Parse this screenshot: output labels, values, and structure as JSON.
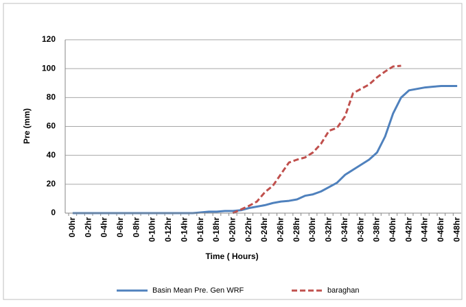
{
  "chart_data": {
    "type": "line",
    "xlabel": "Time ( Hours)",
    "ylabel": "Pre (mm)",
    "categories": [
      "0-0hr",
      null,
      "0-2hr",
      null,
      "0-4hr",
      null,
      "0-6hr",
      null,
      "0-8hr",
      null,
      "0-10hr",
      null,
      "0-12hr",
      null,
      "0-14hr",
      null,
      "0-16hr",
      null,
      "0-18hr",
      null,
      "0-20hr",
      null,
      "0-22hr",
      null,
      "0-24hr",
      null,
      "0-26hr",
      null,
      "0-28hr",
      null,
      "0-30hr",
      null,
      "0-32hr",
      null,
      "0-34hr",
      null,
      "0-36hr",
      null,
      "0-38hr",
      null,
      "0-40hr",
      null,
      "0-42hr",
      null,
      "0-44hr",
      null,
      "0-46hr",
      null,
      "0-48hr"
    ],
    "series": [
      {
        "name": "Basin Mean Pre. Gen WRF",
        "color": "#4f81bd",
        "dash": "solid",
        "values": [
          0,
          0,
          0,
          0,
          0,
          0,
          0,
          0,
          0,
          0,
          0,
          0,
          0,
          0,
          0,
          0,
          0.5,
          1,
          1,
          1.5,
          1.5,
          2,
          3.5,
          4.5,
          5.5,
          7,
          8,
          8.5,
          9.5,
          12,
          13,
          15,
          18,
          21,
          26.5,
          30,
          33.5,
          37,
          42,
          53,
          69,
          80,
          85,
          86,
          87,
          87.5,
          88,
          88,
          88
        ]
      },
      {
        "name": "baraghan",
        "color": "#c0504d",
        "dash": "dashed",
        "values": [
          null,
          null,
          null,
          null,
          null,
          null,
          null,
          null,
          null,
          null,
          null,
          null,
          null,
          null,
          null,
          null,
          null,
          null,
          null,
          null,
          0,
          2.5,
          5,
          8,
          14.5,
          19,
          27,
          35,
          37,
          38.5,
          42,
          48,
          57,
          59,
          67,
          83,
          86,
          89,
          94,
          98,
          101.5,
          102,
          null,
          null,
          null,
          null,
          null,
          null,
          null
        ]
      }
    ],
    "ylim": [
      0,
      120
    ],
    "yticks": [
      0,
      20,
      40,
      60,
      80,
      100,
      120
    ],
    "grid": true
  }
}
